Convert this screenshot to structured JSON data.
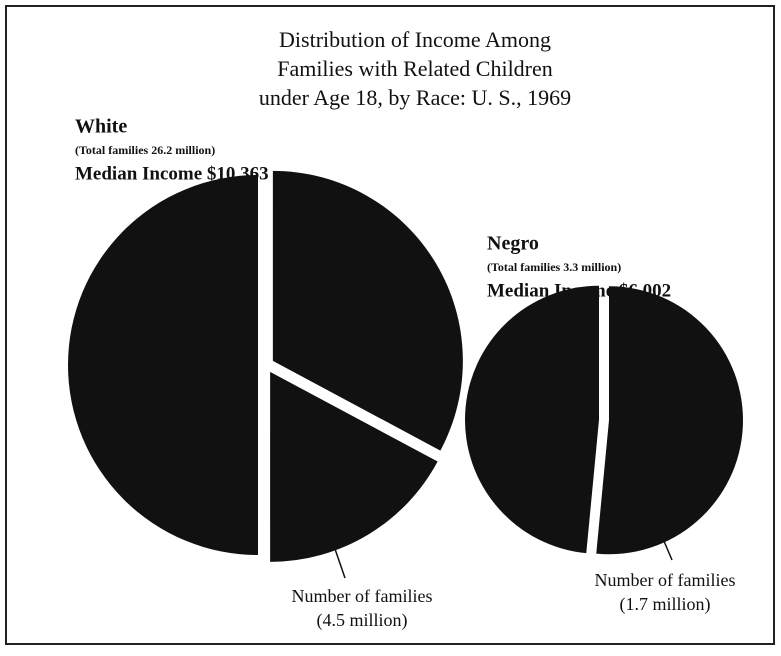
{
  "title": [
    "Distribution of Income Among",
    "Families with Related Children",
    "under Age 18, by Race: U. S., 1969"
  ],
  "chart_data": [
    {
      "type": "pie",
      "name": "White",
      "subtitle": "(Total families 26.2 million)",
      "median": "Median Income $10,363",
      "values": [
        8.6,
        4.5,
        13.1
      ],
      "value_labels": [
        null,
        "(4.5 million)",
        null
      ],
      "annotation": "Number of families",
      "color": "#111111"
    },
    {
      "type": "pie",
      "name": "Negro",
      "subtitle": "(Total families 3.3 million)",
      "median": "Median Income $6,002",
      "values": [
        1.7,
        1.6
      ],
      "value_labels": [
        "(1.7 million)",
        null
      ],
      "annotation": "Number of families",
      "color": "#111111"
    }
  ]
}
